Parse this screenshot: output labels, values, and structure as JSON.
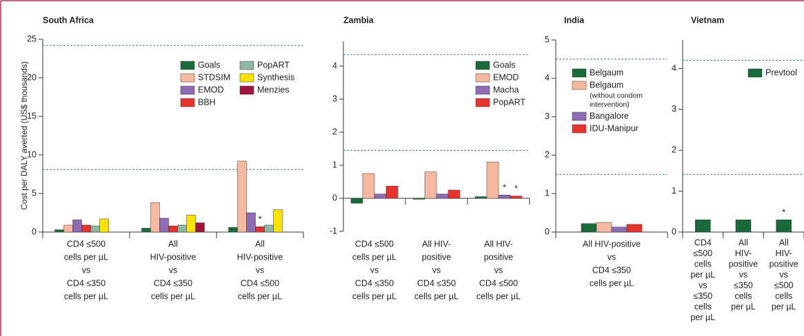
{
  "chart_data": [
    {
      "type": "bar",
      "title": "South Africa",
      "ylabel": "Cost per DALY averted (US$ thousands)",
      "categories": [
        [
          "CD4 ≤500",
          "cells per µL",
          "vs",
          "CD4 ≤350",
          "cells per µL"
        ],
        [
          "All",
          "HIV-positive",
          "vs",
          "CD4 ≤350",
          "cells per µL"
        ],
        [
          "All",
          "HIV-positive",
          "vs",
          "CD4 ≤500",
          "cells per µL"
        ]
      ],
      "series": [
        {
          "name": "Goals",
          "color": "#1a6b3c",
          "values": [
            0.3,
            0.5,
            0.6
          ]
        },
        {
          "name": "STDSIM",
          "color": "#f7b8a0",
          "values": [
            0.9,
            3.8,
            9.2
          ]
        },
        {
          "name": "EMOD",
          "color": "#8d6bb5",
          "values": [
            1.6,
            1.8,
            2.5
          ]
        },
        {
          "name": "BBH",
          "color": "#e8322d",
          "values": [
            0.9,
            0.8,
            0.7
          ]
        },
        {
          "name": "PopART",
          "color": "#8fb8a0",
          "values": [
            0.8,
            0.9,
            0.9
          ]
        },
        {
          "name": "Synthesis",
          "color": "#f7e200",
          "values": [
            1.7,
            2.2,
            2.9
          ]
        },
        {
          "name": "Menzies",
          "color": "#a3123c",
          "values": [
            null,
            1.2,
            null
          ]
        }
      ],
      "annotations": [
        {
          "text": "*",
          "series": 3,
          "category": 2
        }
      ],
      "reference_lines": [
        24.2,
        8.1
      ],
      "ylim": [
        0,
        25
      ],
      "yticks": [
        0,
        5,
        10,
        15,
        20,
        25
      ]
    },
    {
      "type": "bar",
      "title": "Zambia",
      "categories": [
        [
          "CD4 ≤500",
          "cells per µL",
          "vs",
          "CD4 ≤350",
          "cells per µL"
        ],
        [
          "All HIV-",
          "positive",
          "vs",
          "CD4 ≤350",
          "cells per µL"
        ],
        [
          "All HIV-",
          "positive",
          "vs",
          "CD4 ≤500",
          "cells per µL"
        ]
      ],
      "series": [
        {
          "name": "Goals",
          "color": "#1a6b3c",
          "values": [
            -0.15,
            -0.03,
            0.05
          ]
        },
        {
          "name": "EMOD",
          "color": "#f7b8a0",
          "values": [
            0.75,
            0.8,
            1.1
          ]
        },
        {
          "name": "Macha",
          "color": "#8d6bb5",
          "values": [
            0.13,
            0.13,
            0.1
          ]
        },
        {
          "name": "PopART",
          "color": "#e8322d",
          "values": [
            0.37,
            0.25,
            0.07
          ]
        }
      ],
      "annotations": [
        {
          "text": "*",
          "series": 2,
          "category": 2
        },
        {
          "text": "*",
          "series": 3,
          "category": 2
        }
      ],
      "reference_lines": [
        4.35,
        1.45
      ],
      "ylim": [
        -1,
        4.75
      ],
      "yticks": [
        -1,
        0,
        1,
        2,
        3,
        4
      ]
    },
    {
      "type": "bar",
      "title": "India",
      "categories": [
        [
          "All HIV-positive",
          "vs",
          "CD4 ≤350",
          "cells per µL"
        ]
      ],
      "series": [
        {
          "name": "Belgaum",
          "color": "#1a6b3c",
          "values": [
            0.22
          ]
        },
        {
          "name": "Belgaum",
          "note": [
            "(without condom",
            "intervention)"
          ],
          "color": "#f7b8a0",
          "values": [
            0.25
          ]
        },
        {
          "name": "Bangalore",
          "color": "#8d6bb5",
          "values": [
            0.13
          ]
        },
        {
          "name": "IDU-Manipur",
          "color": "#e8322d",
          "values": [
            0.2
          ]
        }
      ],
      "reference_lines": [
        4.5,
        1.5
      ],
      "ylim": [
        0,
        5
      ],
      "yticks": [
        0,
        1,
        2,
        3,
        4,
        5
      ]
    },
    {
      "type": "bar",
      "title": "Vietnam",
      "categories": [
        [
          "CD4",
          "≤500",
          "cells",
          "per µL",
          "vs",
          "≤350",
          "cells",
          "per µL"
        ],
        [
          "All",
          "HIV-",
          "positive",
          "vs",
          "≤350",
          "cells",
          "per µL"
        ],
        [
          "All",
          "HIV-",
          "positive",
          "vs",
          "≤500",
          "cells",
          "per µL"
        ]
      ],
      "series": [
        {
          "name": "Prevtool",
          "color": "#1a6b3c",
          "values": [
            0.3,
            0.3,
            0.3
          ]
        }
      ],
      "annotations": [
        {
          "text": "*",
          "series": 0,
          "category": 2
        }
      ],
      "reference_lines": [
        4.2,
        1.41
      ],
      "ylim": [
        0,
        4.7
      ],
      "yticks": [
        0,
        1,
        2,
        3,
        4
      ]
    }
  ]
}
